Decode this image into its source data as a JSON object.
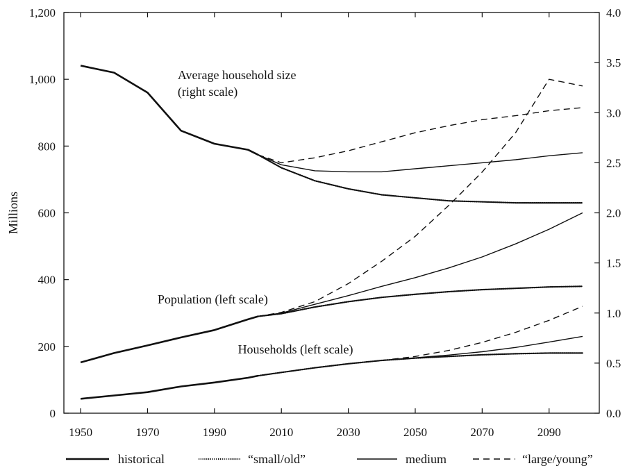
{
  "chart_data": {
    "type": "line",
    "title": "",
    "ylabel": "Millions",
    "ylabel_right": "",
    "xlabel": "",
    "xlim": [
      1945,
      2105
    ],
    "ylim": [
      0,
      1200
    ],
    "ylim_right": [
      0,
      4.0
    ],
    "x_ticks": [
      1950,
      1970,
      1990,
      2010,
      2030,
      2050,
      2070,
      2090
    ],
    "x_tick_labels": [
      "1950",
      "1970",
      "1990",
      "2010",
      "2030",
      "2050",
      "2070",
      "2090"
    ],
    "y_ticks": [
      0,
      200,
      400,
      600,
      800,
      1000,
      1200
    ],
    "y_tick_labels": [
      "0",
      "200",
      "400",
      "600",
      "800",
      "1,000",
      "1,200"
    ],
    "y_right_ticks": [
      0,
      0.5,
      1.0,
      1.5,
      2.0,
      2.5,
      3.0,
      3.5,
      4.0
    ],
    "y_right_tick_labels": [
      "0.0",
      "0.5",
      "1.0",
      "1.5",
      "2.0",
      "2.5",
      "3.0",
      "3.5",
      "4.0"
    ],
    "grid": false,
    "legend_position": "bottom",
    "legend": [
      {
        "label": "historical",
        "style": "thick-solid"
      },
      {
        "label": "“small/old”",
        "style": "dotted"
      },
      {
        "label": "medium",
        "style": "solid"
      },
      {
        "label": "“large/young”",
        "style": "dashed"
      }
    ],
    "annotations": [
      {
        "text": "Average household size",
        "x": 1979,
        "y": 1000
      },
      {
        "text": "(right scale)",
        "x": 1979,
        "y": 950
      },
      {
        "text": "Population (left scale)",
        "x": 1973,
        "y": 329
      },
      {
        "text": "Households (left scale)",
        "x": 1997,
        "y": 179
      }
    ],
    "series": [
      {
        "group": "household_size",
        "axis": "right",
        "style": "historical",
        "x": [
          1950,
          1960,
          1970,
          1980,
          1990,
          2000,
          2003
        ],
        "values": [
          3.47,
          3.4,
          3.2,
          2.82,
          2.69,
          2.63,
          2.58
        ]
      },
      {
        "group": "household_size",
        "axis": "right",
        "style": "small_old",
        "x": [
          2003,
          2010,
          2020,
          2030,
          2040,
          2050,
          2060,
          2070,
          2080,
          2090,
          2100
        ],
        "values": [
          2.58,
          2.45,
          2.32,
          2.24,
          2.18,
          2.15,
          2.12,
          2.11,
          2.1,
          2.1,
          2.1
        ]
      },
      {
        "group": "household_size",
        "axis": "right",
        "style": "medium",
        "x": [
          2003,
          2010,
          2020,
          2030,
          2040,
          2050,
          2060,
          2070,
          2080,
          2090,
          2100
        ],
        "values": [
          2.58,
          2.48,
          2.42,
          2.41,
          2.41,
          2.44,
          2.47,
          2.5,
          2.53,
          2.57,
          2.6
        ]
      },
      {
        "group": "household_size",
        "axis": "right",
        "style": "large_young",
        "x": [
          2003,
          2010,
          2020,
          2030,
          2040,
          2050,
          2060,
          2070,
          2080,
          2090,
          2100
        ],
        "values": [
          2.58,
          2.5,
          2.55,
          2.62,
          2.71,
          2.8,
          2.87,
          2.93,
          2.97,
          3.02,
          3.05
        ]
      },
      {
        "group": "population",
        "axis": "left",
        "style": "historical",
        "x": [
          1950,
          1960,
          1970,
          1980,
          1990,
          2000,
          2003
        ],
        "values": [
          152,
          180,
          203,
          227,
          249,
          281,
          290
        ]
      },
      {
        "group": "population",
        "axis": "left",
        "style": "small_old",
        "x": [
          2003,
          2010,
          2020,
          2030,
          2040,
          2050,
          2060,
          2070,
          2080,
          2090,
          2100
        ],
        "values": [
          290,
          298,
          318,
          334,
          347,
          356,
          364,
          370,
          374,
          378,
          380
        ]
      },
      {
        "group": "population",
        "axis": "left",
        "style": "medium",
        "x": [
          2003,
          2010,
          2020,
          2030,
          2040,
          2050,
          2060,
          2070,
          2080,
          2090,
          2100
        ],
        "values": [
          290,
          300,
          326,
          352,
          380,
          406,
          435,
          468,
          507,
          551,
          600
        ]
      },
      {
        "group": "population",
        "axis": "left",
        "style": "large_young",
        "x": [
          2003,
          2010,
          2020,
          2030,
          2040,
          2050,
          2060,
          2070,
          2080,
          2090,
          2100
        ],
        "values": [
          290,
          302,
          334,
          388,
          455,
          530,
          622,
          722,
          840,
          1000,
          980
        ]
      },
      {
        "group": "households",
        "axis": "left",
        "style": "historical",
        "x": [
          1950,
          1960,
          1970,
          1980,
          1990,
          2000,
          2003
        ],
        "values": [
          43,
          53,
          63,
          80,
          92,
          106,
          112
        ]
      },
      {
        "group": "households",
        "axis": "left",
        "style": "small_old",
        "x": [
          2003,
          2010,
          2020,
          2030,
          2040,
          2050,
          2060,
          2070,
          2080,
          2090,
          2100
        ],
        "values": [
          112,
          122,
          136,
          148,
          158,
          165,
          170,
          175,
          178,
          180,
          180
        ]
      },
      {
        "group": "households",
        "axis": "left",
        "style": "medium",
        "x": [
          2003,
          2010,
          2020,
          2030,
          2040,
          2050,
          2060,
          2070,
          2080,
          2090,
          2100
        ],
        "values": [
          112,
          122,
          136,
          148,
          158,
          166,
          174,
          184,
          197,
          213,
          230
        ]
      },
      {
        "group": "households",
        "axis": "left",
        "style": "large_young",
        "x": [
          2003,
          2010,
          2020,
          2030,
          2040,
          2050,
          2060,
          2070,
          2080,
          2090,
          2100
        ],
        "values": [
          112,
          122,
          136,
          148,
          158,
          170,
          188,
          212,
          242,
          278,
          320
        ]
      }
    ]
  }
}
